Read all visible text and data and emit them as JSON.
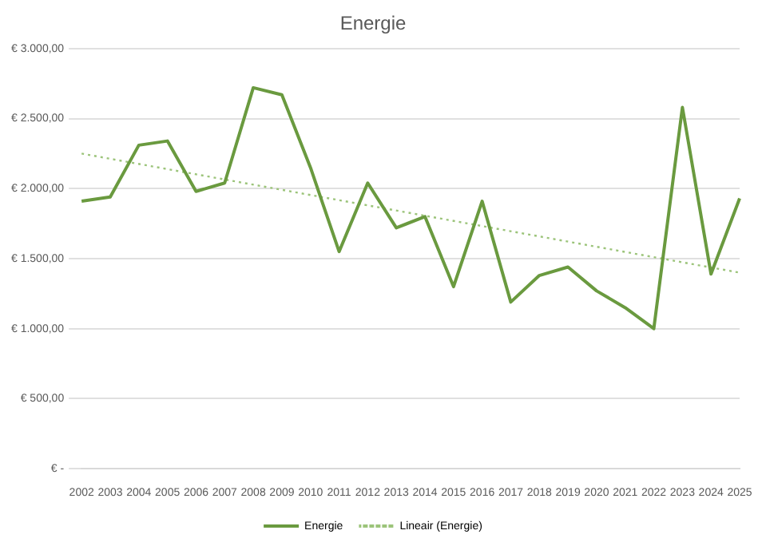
{
  "chart_data": {
    "type": "line",
    "title": "Energie",
    "categories": [
      "2002",
      "2003",
      "2004",
      "2005",
      "2006",
      "2007",
      "2008",
      "2009",
      "2010",
      "2011",
      "2012",
      "2013",
      "2014",
      "2015",
      "2016",
      "2017",
      "2018",
      "2019",
      "2020",
      "2021",
      "2022",
      "2023",
      "2024",
      "2025"
    ],
    "series": [
      {
        "name": "Energie",
        "color": "#6a9a3f",
        "values": [
          1910,
          1940,
          2310,
          2340,
          1980,
          2040,
          2720,
          2670,
          2150,
          1550,
          2040,
          1720,
          1800,
          1300,
          1910,
          1190,
          1380,
          1440,
          1270,
          1150,
          1000,
          2580,
          1390,
          1930
        ]
      },
      {
        "name": "Lineair (Energie)",
        "type": "line",
        "color": "#9cc47a",
        "line_style": "dotted",
        "values": [
          2250,
          null,
          null,
          null,
          null,
          null,
          null,
          null,
          null,
          null,
          null,
          null,
          null,
          null,
          null,
          null,
          null,
          null,
          null,
          null,
          null,
          null,
          null,
          1400
        ]
      }
    ],
    "ylim": [
      0,
      3000
    ],
    "yticks": [
      {
        "value": 0,
        "label": "€ -"
      },
      {
        "value": 500,
        "label": "€ 500,00"
      },
      {
        "value": 1000,
        "label": "€ 1.000,00"
      },
      {
        "value": 1500,
        "label": "€ 1.500,00"
      },
      {
        "value": 2000,
        "label": "€ 2.000,00"
      },
      {
        "value": 2500,
        "label": "€ 2.500,00"
      },
      {
        "value": 3000,
        "label": "€ 3.000,00"
      }
    ],
    "grid": "y",
    "legend": "bottom",
    "marker": "none",
    "line_style": "solid"
  }
}
